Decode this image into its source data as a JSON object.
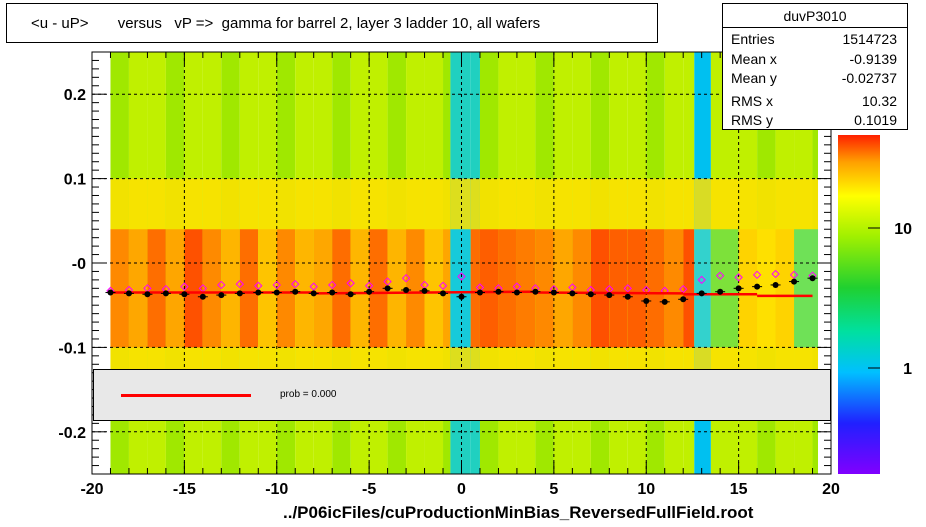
{
  "title": "<u - uP>       versus   vP =>  gamma for barrel 2, layer 3 ladder 10, all wafers",
  "stats": {
    "name": "duvP3010",
    "rows": [
      {
        "label": "Entries",
        "value": "1514723"
      },
      {
        "label": "Mean x",
        "value": "-0.9139"
      },
      {
        "label": "Mean y",
        "value": "-0.02737"
      },
      {
        "label": "RMS x",
        "value": "10.32"
      },
      {
        "label": "RMS y",
        "value": "0.1019"
      }
    ]
  },
  "legend": {
    "text": "prob = 0.000",
    "color": "#ff0000"
  },
  "footer": "../P06icFiles/cuProductionMinBias_ReversedFullField.root",
  "colors": {
    "profile_black": "#000000",
    "profile_magenta": "#ff00ff",
    "fit_red": "#ff0000"
  },
  "chart_data": {
    "type": "heatmap",
    "title": "<u - uP>       versus   vP =>  gamma for barrel 2, layer 3 ladder 10, all wafers",
    "xlim": [
      -20,
      20
    ],
    "ylim": [
      -0.25,
      0.25
    ],
    "x_ticks": [
      "-20",
      "-15",
      "-10",
      "-5",
      "0",
      "5",
      "10",
      "15",
      "20"
    ],
    "y_ticks": [
      "-0.2",
      "-0.1",
      "-0",
      "0.1",
      "0.2"
    ],
    "z_scale": "log",
    "z_ticks": [
      "1",
      "10"
    ],
    "grid": true,
    "series": [
      {
        "name": "mean",
        "x": [
          -19,
          -18,
          -17,
          -16,
          -15,
          -14,
          -13,
          -12,
          -11,
          -10,
          -9,
          -8,
          -7,
          -6,
          -5,
          -4,
          -3,
          -2,
          -1,
          0,
          1,
          2,
          3,
          4,
          5,
          6,
          7,
          8,
          9,
          10,
          11,
          12,
          13,
          14,
          15,
          16,
          17,
          18,
          19
        ],
        "y": [
          -0.035,
          -0.036,
          -0.037,
          -0.036,
          -0.037,
          -0.04,
          -0.038,
          -0.036,
          -0.035,
          -0.035,
          -0.034,
          -0.036,
          -0.035,
          -0.037,
          -0.034,
          -0.03,
          -0.032,
          -0.033,
          -0.036,
          -0.04,
          -0.035,
          -0.034,
          -0.035,
          -0.034,
          -0.035,
          -0.036,
          -0.037,
          -0.038,
          -0.04,
          -0.045,
          -0.046,
          -0.043,
          -0.036,
          -0.034,
          -0.03,
          -0.028,
          -0.026,
          -0.022,
          -0.018
        ]
      },
      {
        "name": "rms",
        "x": [
          -19,
          -18,
          -17,
          -16,
          -15,
          -14,
          -13,
          -12,
          -11,
          -10,
          -9,
          -8,
          -7,
          -6,
          -5,
          -4,
          -3,
          -2,
          -1,
          0,
          1,
          2,
          3,
          4,
          5,
          6,
          7,
          8,
          9,
          10,
          11,
          12,
          13,
          14,
          15,
          16,
          17,
          18,
          19
        ],
        "y": [
          -0.033,
          -0.032,
          -0.03,
          -0.031,
          -0.028,
          -0.03,
          -0.026,
          -0.025,
          -0.027,
          -0.026,
          -0.025,
          -0.028,
          -0.026,
          -0.024,
          -0.027,
          -0.022,
          -0.018,
          -0.026,
          -0.027,
          -0.016,
          -0.029,
          -0.03,
          -0.028,
          -0.03,
          -0.031,
          -0.029,
          -0.032,
          -0.031,
          -0.03,
          -0.032,
          -0.033,
          -0.031,
          -0.02,
          -0.015,
          -0.017,
          -0.014,
          -0.013,
          -0.014,
          -0.015
        ]
      },
      {
        "name": "fit",
        "segments": [
          [
            -19,
            -0.035,
            -8,
            -0.035
          ],
          [
            -8,
            -0.036,
            4,
            -0.034
          ],
          [
            4,
            -0.035,
            12,
            -0.036
          ],
          [
            12,
            -0.037,
            16,
            -0.037
          ],
          [
            16,
            -0.039,
            19,
            -0.039
          ]
        ]
      }
    ]
  }
}
